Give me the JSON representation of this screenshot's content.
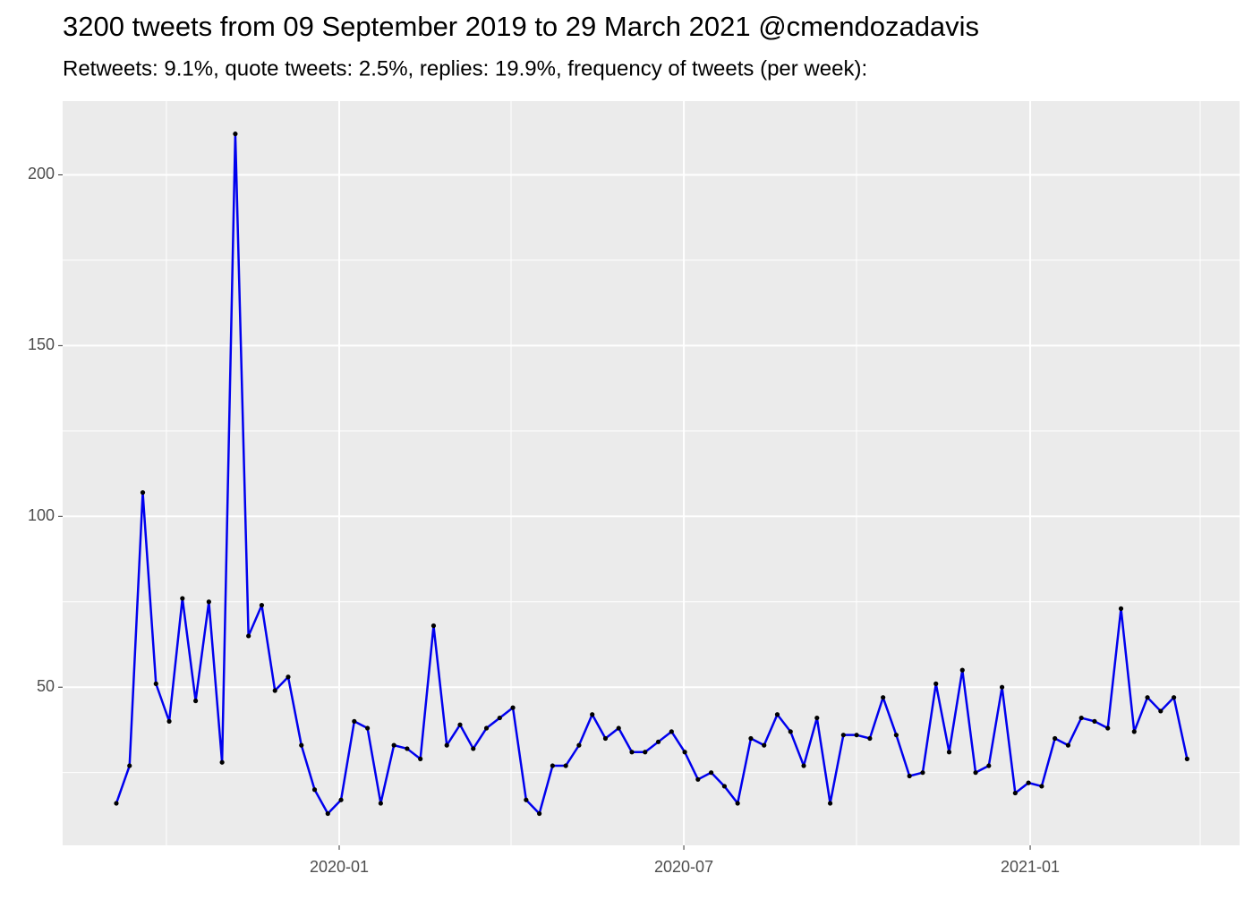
{
  "chart_data": {
    "type": "line",
    "title": "3200 tweets from 09 September 2019 to 29 March 2021 @cmendozadavis",
    "subtitle": "Retweets: 9.1%, quote tweets: 2.5%, replies: 19.9%, frequency of tweets (per week):",
    "values": [
      16,
      27,
      107,
      51,
      40,
      76,
      46,
      75,
      28,
      212,
      65,
      74,
      49,
      53,
      33,
      20,
      13,
      17,
      40,
      38,
      16,
      33,
      32,
      29,
      68,
      33,
      39,
      32,
      38,
      41,
      44,
      17,
      13,
      27,
      27,
      33,
      42,
      35,
      38,
      31,
      31,
      34,
      37,
      31,
      23,
      25,
      21,
      16,
      35,
      33,
      42,
      37,
      27,
      41,
      16,
      36,
      36,
      35,
      47,
      36,
      24,
      25,
      51,
      31,
      55,
      25,
      27,
      50,
      19,
      22,
      21,
      35,
      33,
      41,
      40,
      38,
      73,
      37,
      47,
      43,
      47,
      29
    ],
    "color": "#0000ee",
    "point_color": "#000000",
    "xlim": [
      -4.06,
      84.97
    ],
    "xticks": [
      {
        "value": 16.86,
        "label": "2020-01"
      },
      {
        "value": 42.93,
        "label": "2020-07"
      },
      {
        "value": 69.13,
        "label": "2021-01"
      }
    ],
    "xminor": [
      3.79,
      29.86,
      55.99,
      81.99
    ],
    "ylim": [
      3.7,
      221.6
    ],
    "yticks": [
      50,
      100,
      150,
      200
    ],
    "yminor": [
      25,
      75,
      125,
      175
    ],
    "grid": true
  }
}
